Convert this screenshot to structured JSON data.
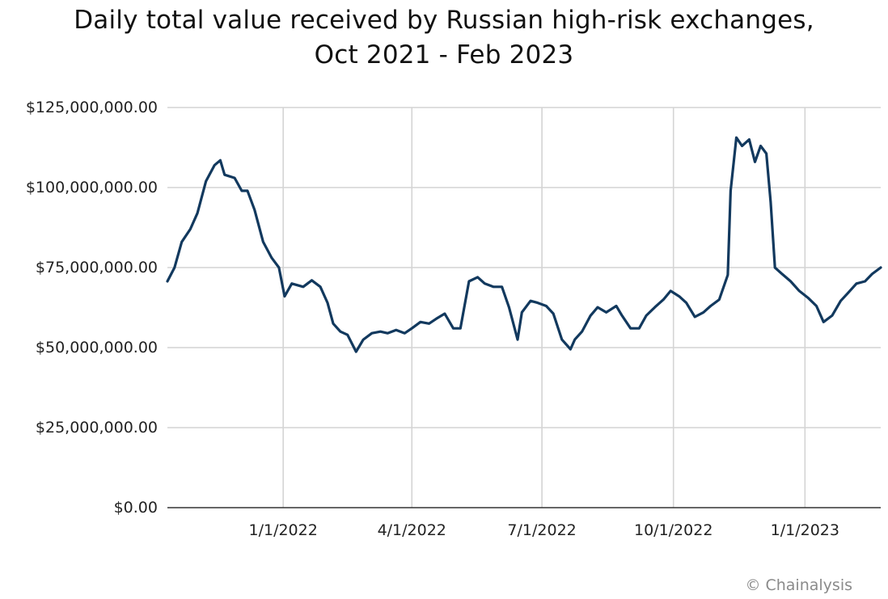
{
  "chart_data": {
    "type": "line",
    "title": "Daily total value received by Russian high-risk exchanges,",
    "subtitle": "Oct 2021 - Feb 2023",
    "xlabel": "",
    "ylabel": "",
    "ylim": [
      0,
      125000000
    ],
    "grid": true,
    "legend": null,
    "y_ticks": [
      "$0.00",
      "$25,000,000.00",
      "$50,000,000.00",
      "$75,000,000.00",
      "$100,000,000.00",
      "$125,000,000.00"
    ],
    "y_tick_values": [
      0,
      25000000,
      50000000,
      75000000,
      100000000,
      125000000
    ],
    "x_ticks": [
      "1/1/2022",
      "4/1/2022",
      "7/1/2022",
      "10/1/2022",
      "1/1/2023"
    ],
    "x_range": [
      "2021-10-12",
      "2023-02-23"
    ],
    "series": [
      {
        "name": "Daily total value received",
        "color": "#12395e",
        "x": [
          "2021-10-12",
          "2021-10-17",
          "2021-10-22",
          "2021-10-28",
          "2021-11-02",
          "2021-11-08",
          "2021-11-14",
          "2021-11-18",
          "2021-11-21",
          "2021-11-28",
          "2021-12-03",
          "2021-12-07",
          "2021-12-12",
          "2021-12-18",
          "2021-12-24",
          "2021-12-29",
          "2022-01-02",
          "2022-01-07",
          "2022-01-15",
          "2022-01-21",
          "2022-01-27",
          "2022-02-01",
          "2022-02-05",
          "2022-02-10",
          "2022-02-15",
          "2022-02-21",
          "2022-02-26",
          "2022-03-04",
          "2022-03-10",
          "2022-03-15",
          "2022-03-21",
          "2022-03-27",
          "2022-04-01",
          "2022-04-07",
          "2022-04-13",
          "2022-04-18",
          "2022-04-24",
          "2022-04-30",
          "2022-05-05",
          "2022-05-11",
          "2022-05-17",
          "2022-05-22",
          "2022-05-28",
          "2022-06-03",
          "2022-06-08",
          "2022-06-14",
          "2022-06-17",
          "2022-06-23",
          "2022-06-28",
          "2022-07-04",
          "2022-07-09",
          "2022-07-15",
          "2022-07-21",
          "2022-07-24",
          "2022-07-29",
          "2022-08-04",
          "2022-08-09",
          "2022-08-15",
          "2022-08-22",
          "2022-08-26",
          "2022-09-01",
          "2022-09-07",
          "2022-09-12",
          "2022-09-18",
          "2022-09-24",
          "2022-09-29",
          "2022-10-05",
          "2022-10-10",
          "2022-10-16",
          "2022-10-22",
          "2022-10-27",
          "2022-11-02",
          "2022-11-08",
          "2022-11-10",
          "2022-11-14",
          "2022-11-18",
          "2022-11-23",
          "2022-11-27",
          "2022-12-01",
          "2022-12-05",
          "2022-12-08",
          "2022-12-11",
          "2022-12-16",
          "2022-12-22",
          "2022-12-28",
          "2023-01-03",
          "2023-01-09",
          "2023-01-14",
          "2023-01-20",
          "2023-01-26",
          "2023-01-31",
          "2023-02-06",
          "2023-02-12",
          "2023-02-17",
          "2023-02-23"
        ],
        "values": [
          70700000,
          75000000,
          83000000,
          87000000,
          92000000,
          102000000,
          107000000,
          108500000,
          104000000,
          103000000,
          99000000,
          99000000,
          93000000,
          83000000,
          78000000,
          75000000,
          66000000,
          70000000,
          69000000,
          71000000,
          69000000,
          64000000,
          57500000,
          55000000,
          54000000,
          48700000,
          52500000,
          54500000,
          55000000,
          54500000,
          55500000,
          54500000,
          56000000,
          58000000,
          57500000,
          59000000,
          60600000,
          56000000,
          56000000,
          70700000,
          72000000,
          70000000,
          69000000,
          69000000,
          62600000,
          52500000,
          61000000,
          64600000,
          64000000,
          63000000,
          60600000,
          52500000,
          49500000,
          52500000,
          55000000,
          60000000,
          62600000,
          61000000,
          63000000,
          60000000,
          56000000,
          56000000,
          60000000,
          62600000,
          65000000,
          67700000,
          66000000,
          64000000,
          59600000,
          61000000,
          63000000,
          65000000,
          72700000,
          99000000,
          115600000,
          113000000,
          115000000,
          108000000,
          113000000,
          110600000,
          95500000,
          75000000,
          73000000,
          70700000,
          67700000,
          65600000,
          63000000,
          58000000,
          60000000,
          64600000,
          67000000,
          70000000,
          70700000,
          73000000,
          75000000
        ]
      }
    ]
  },
  "header": {
    "title_line1": "Daily total value received by Russian high-risk exchanges,",
    "title_line2": "Oct 2021 - Feb 2023"
  },
  "footer": {
    "credit": "© Chainalysis"
  },
  "colors": {
    "line": "#12395e",
    "grid": "#d4d4d4",
    "axis": "#333333",
    "credit": "#8a8a8a"
  }
}
